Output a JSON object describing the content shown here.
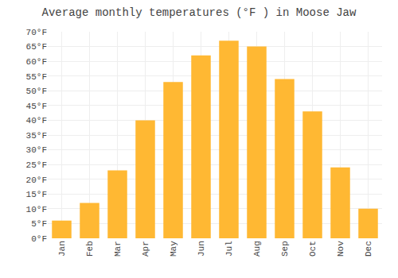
{
  "chart_data": {
    "type": "bar",
    "title": "Average monthly temperatures (°F ) in Moose Jaw",
    "categories": [
      "Jan",
      "Feb",
      "Mar",
      "Apr",
      "May",
      "Jun",
      "Jul",
      "Aug",
      "Sep",
      "Oct",
      "Nov",
      "Dec"
    ],
    "values": [
      6,
      12,
      23,
      40,
      53,
      62,
      67,
      65,
      54,
      43,
      24,
      10
    ],
    "color": "#FFB833",
    "ylim": [
      0,
      70
    ],
    "yticks": [
      {
        "value": 0,
        "label": "0°F"
      },
      {
        "value": 5,
        "label": "5°F"
      },
      {
        "value": 10,
        "label": "10°F"
      },
      {
        "value": 15,
        "label": "15°F"
      },
      {
        "value": 20,
        "label": "20°F"
      },
      {
        "value": 25,
        "label": "25°F"
      },
      {
        "value": 30,
        "label": "30°F"
      },
      {
        "value": 35,
        "label": "35°F"
      },
      {
        "value": 40,
        "label": "40°F"
      },
      {
        "value": 45,
        "label": "45°F"
      },
      {
        "value": 50,
        "label": "50°F"
      },
      {
        "value": 55,
        "label": "55°F"
      },
      {
        "value": 60,
        "label": "60°F"
      },
      {
        "value": 65,
        "label": "65°F"
      },
      {
        "value": 70,
        "label": "70°F"
      }
    ],
    "grid": true
  }
}
